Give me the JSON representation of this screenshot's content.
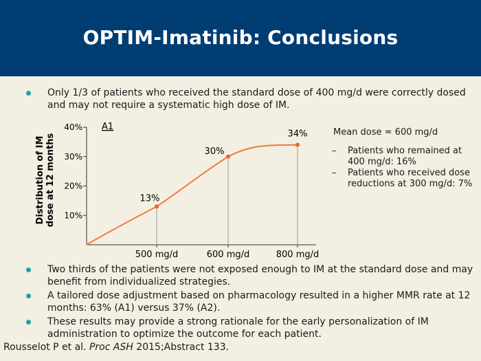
{
  "slide": {
    "title": "OPTIM-Imatinib: Conclusions"
  },
  "bullets_top": [
    {
      "text": "Only 1/3 of patients who received the standard dose of 400 mg/d were correctly dosed and may not require a systematic high dose of IM."
    }
  ],
  "chart_data": {
    "type": "line",
    "title": "A1",
    "ylabel": "Distribution of IM dose at 12 months",
    "xlabel": "",
    "x": [
      "500 mg/d",
      "600 mg/d",
      "800 mg/d"
    ],
    "series": [
      {
        "values": [
          13,
          30,
          34
        ]
      }
    ],
    "point_labels": [
      "13%",
      "30%",
      "34%"
    ],
    "yticks": [
      "10%",
      "20%",
      "30%",
      "40%"
    ],
    "ylim": [
      0,
      40
    ],
    "grid": false,
    "colors": {
      "line": "#f07a3a",
      "markers": "#e8632a",
      "droplines": "#9a9a9a"
    }
  },
  "side_notes": {
    "mean": "Mean dose = 600 mg/d",
    "items": [
      {
        "dash": "–",
        "text": "Patients who remained at 400 mg/d: 16%"
      },
      {
        "dash": "–",
        "text": "Patients who received dose reductions at 300 mg/d: 7%"
      }
    ]
  },
  "bullets_bottom": [
    {
      "text": "Two thirds of the patients were not exposed enough to IM at the standard dose and may benefit from individualized strategies."
    },
    {
      "text": "A tailored dose adjustment based on pharmacology resulted in a higher MMR rate at 12 months: 63% (A1) versus 37% (A2)."
    },
    {
      "text": "These results may provide a strong rationale for the early personalization of IM administration to optimize the outcome for each patient."
    }
  ],
  "citation": {
    "prefix": "Rousselot P et al. ",
    "journal": "Proc ASH",
    "suffix": " 2015;Abstract 133."
  },
  "theme": {
    "header_bg": "#003d73",
    "body_bg": "#f3efe2",
    "bullet": "#1aa3a8"
  }
}
